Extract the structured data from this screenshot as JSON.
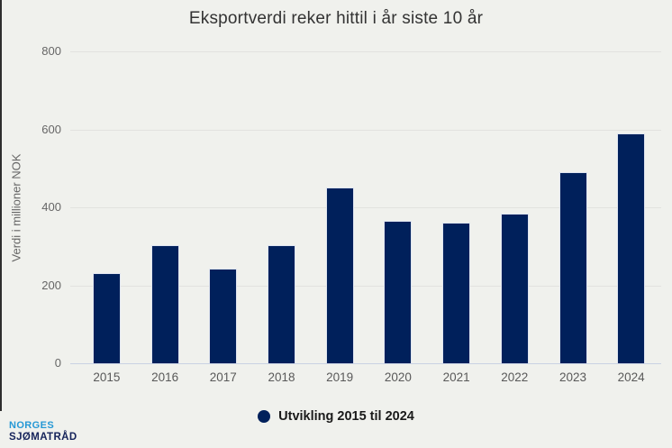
{
  "chart": {
    "title": "Eksportverdi reker hittil i år siste 10 år",
    "ylabel": "Verdi i millioner NOK",
    "legend_label": "Utvikling 2015 til 2024"
  },
  "chart_data": {
    "type": "bar",
    "title": "Eksportverdi reker hittil i år siste 10 år",
    "xlabel": "",
    "ylabel": "Verdi i millioner NOK",
    "categories": [
      "2015",
      "2016",
      "2017",
      "2018",
      "2019",
      "2020",
      "2021",
      "2022",
      "2023",
      "2024"
    ],
    "series": [
      {
        "name": "Utvikling 2015 til 2024",
        "values": [
          232,
          304,
          243,
          304,
          450,
          366,
          361,
          384,
          490,
          590
        ]
      }
    ],
    "ylim": [
      0,
      800
    ],
    "yticks": [
      0,
      200,
      400,
      600,
      800
    ],
    "grid": true,
    "legend_position": "bottom"
  },
  "logo": {
    "line1": "NORGES",
    "line2": "SJØMATRÅD"
  },
  "colors": {
    "bar": "#00205b",
    "background": "#f0f1ed",
    "grid": "#e2e2df",
    "baseline": "#c9d2e3",
    "axis_text": "#666666",
    "title_text": "#333333",
    "legend_text": "#1a1a1a",
    "logo_blue": "#2598d5",
    "logo_navy": "#15235a"
  }
}
